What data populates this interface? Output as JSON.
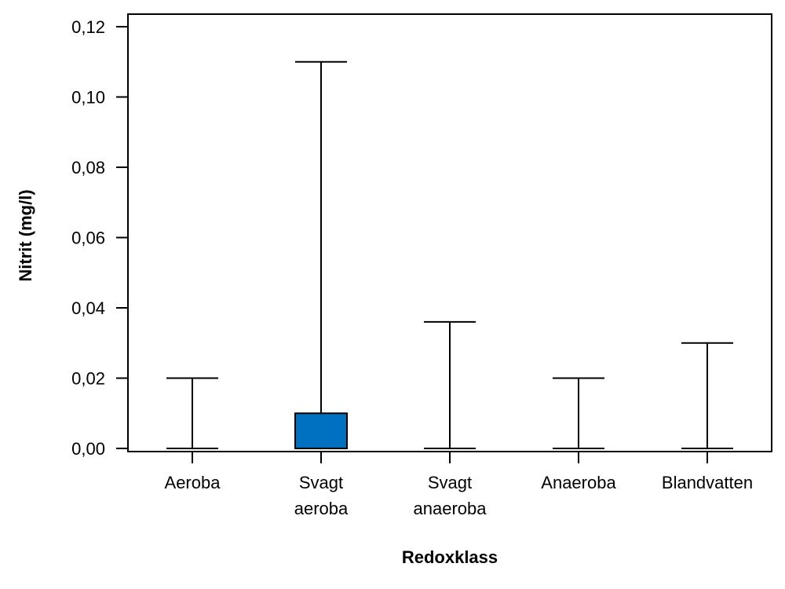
{
  "chart_data": {
    "type": "box",
    "xlabel": "Redoxklass",
    "ylabel": "Nitrit (mg/l)",
    "ylim": [
      0,
      0.12
    ],
    "yticks": [
      "0,00",
      "0,02",
      "0,04",
      "0,06",
      "0,08",
      "0,10",
      "0,12"
    ],
    "ytick_values": [
      0,
      0.02,
      0.04,
      0.06,
      0.08,
      0.1,
      0.12
    ],
    "grid": false,
    "box_color": "#0070C0",
    "categories": [
      {
        "label": [
          "Aeroba"
        ],
        "min": 0,
        "q1": 0,
        "median": 0,
        "q3": 0,
        "max": 0.02
      },
      {
        "label": [
          "Svagt",
          "aeroba"
        ],
        "min": 0,
        "q1": 0,
        "median": 0,
        "q3": 0.01,
        "max": 0.11
      },
      {
        "label": [
          "Svagt",
          "anaeroba"
        ],
        "min": 0,
        "q1": 0,
        "median": 0,
        "q3": 0,
        "max": 0.036
      },
      {
        "label": [
          "Anaeroba"
        ],
        "min": 0,
        "q1": 0,
        "median": 0,
        "q3": 0,
        "max": 0.02
      },
      {
        "label": [
          "Blandvatten"
        ],
        "min": 0,
        "q1": 0,
        "median": 0,
        "q3": 0,
        "max": 0.03
      }
    ]
  }
}
